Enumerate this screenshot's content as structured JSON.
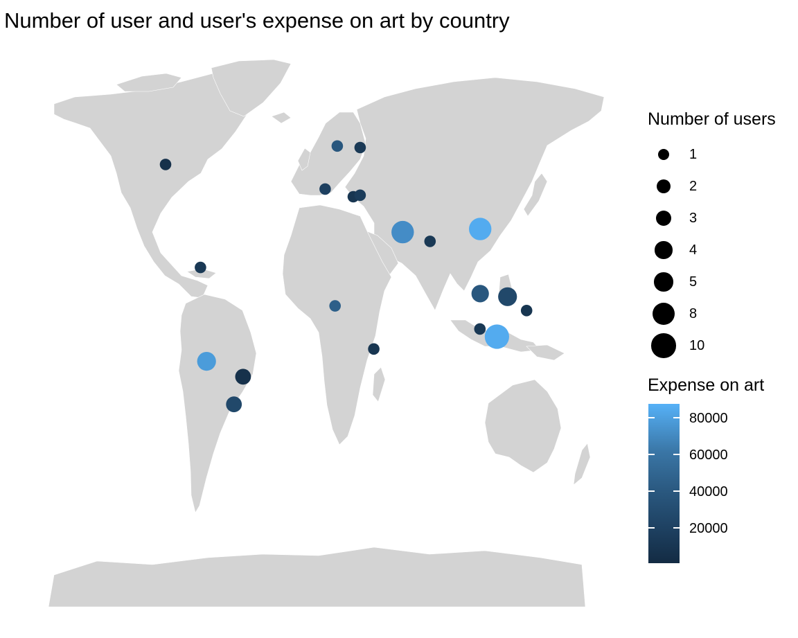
{
  "title": "Number of user and user's expense on art by country",
  "size_legend": {
    "title": "Number of users",
    "items": [
      {
        "label": "1",
        "value": 1
      },
      {
        "label": "2",
        "value": 2
      },
      {
        "label": "3",
        "value": 3
      },
      {
        "label": "4",
        "value": 4
      },
      {
        "label": "5",
        "value": 5
      },
      {
        "label": "8",
        "value": 8
      },
      {
        "label": "10",
        "value": 10
      }
    ]
  },
  "color_legend": {
    "title": "Expense on art",
    "ticks": [
      "80000",
      "60000",
      "40000",
      "20000"
    ],
    "low_color": "#132b43",
    "high_color": "#56b1f7"
  },
  "colors": {
    "land": "#d3d3d3",
    "borders": "#ffffff",
    "background": "#ffffff"
  },
  "map_data": {
    "projection": "equirectangular",
    "points": [
      {
        "place": "Canada",
        "lon": -103,
        "lat": 55,
        "users": 1,
        "expense": 5000
      },
      {
        "place": "Norway",
        "lon": 10,
        "lat": 61,
        "users": 1,
        "expense": 30000
      },
      {
        "place": "Finland",
        "lon": 25,
        "lat": 60.5,
        "users": 1,
        "expense": 10000
      },
      {
        "place": "France",
        "lon": 2,
        "lat": 47,
        "users": 1,
        "expense": 15000
      },
      {
        "place": "Serbia",
        "lon": 20.5,
        "lat": 44.5,
        "users": 1,
        "expense": 8000
      },
      {
        "place": "Romania",
        "lon": 25,
        "lat": 45,
        "users": 1,
        "expense": 12000
      },
      {
        "place": "Iran",
        "lon": 53,
        "lat": 33,
        "users": 8,
        "expense": 65000
      },
      {
        "place": "Pakistan",
        "lon": 71,
        "lat": 30,
        "users": 1,
        "expense": 10000
      },
      {
        "place": "China",
        "lon": 104,
        "lat": 34,
        "users": 8,
        "expense": 85000
      },
      {
        "place": "Cuba",
        "lon": -80,
        "lat": 21.5,
        "users": 1,
        "expense": 10000
      },
      {
        "place": "Nigeria",
        "lon": 8.5,
        "lat": 9,
        "users": 1,
        "expense": 35000
      },
      {
        "place": "Cambodia",
        "lon": 104,
        "lat": 13,
        "users": 4,
        "expense": 30000
      },
      {
        "place": "Philippines",
        "lon": 122,
        "lat": 12,
        "users": 5,
        "expense": 20000
      },
      {
        "place": "Palau",
        "lon": 134.5,
        "lat": 7.5,
        "users": 1,
        "expense": 8000
      },
      {
        "place": "Singapore",
        "lon": 103.8,
        "lat": 1.5,
        "users": 1,
        "expense": 10000
      },
      {
        "place": "Indonesia",
        "lon": 115,
        "lat": -1,
        "users": 10,
        "expense": 85000
      },
      {
        "place": "Tanzania",
        "lon": 34,
        "lat": -5,
        "users": 1,
        "expense": 8000
      },
      {
        "place": "Peru",
        "lon": -76,
        "lat": -9,
        "users": 5,
        "expense": 75000
      },
      {
        "place": "Brazil",
        "lon": -52,
        "lat": -14,
        "users": 3,
        "expense": 5000
      },
      {
        "place": "Paraguay",
        "lon": -58,
        "lat": -23,
        "users": 3,
        "expense": 20000
      }
    ]
  }
}
